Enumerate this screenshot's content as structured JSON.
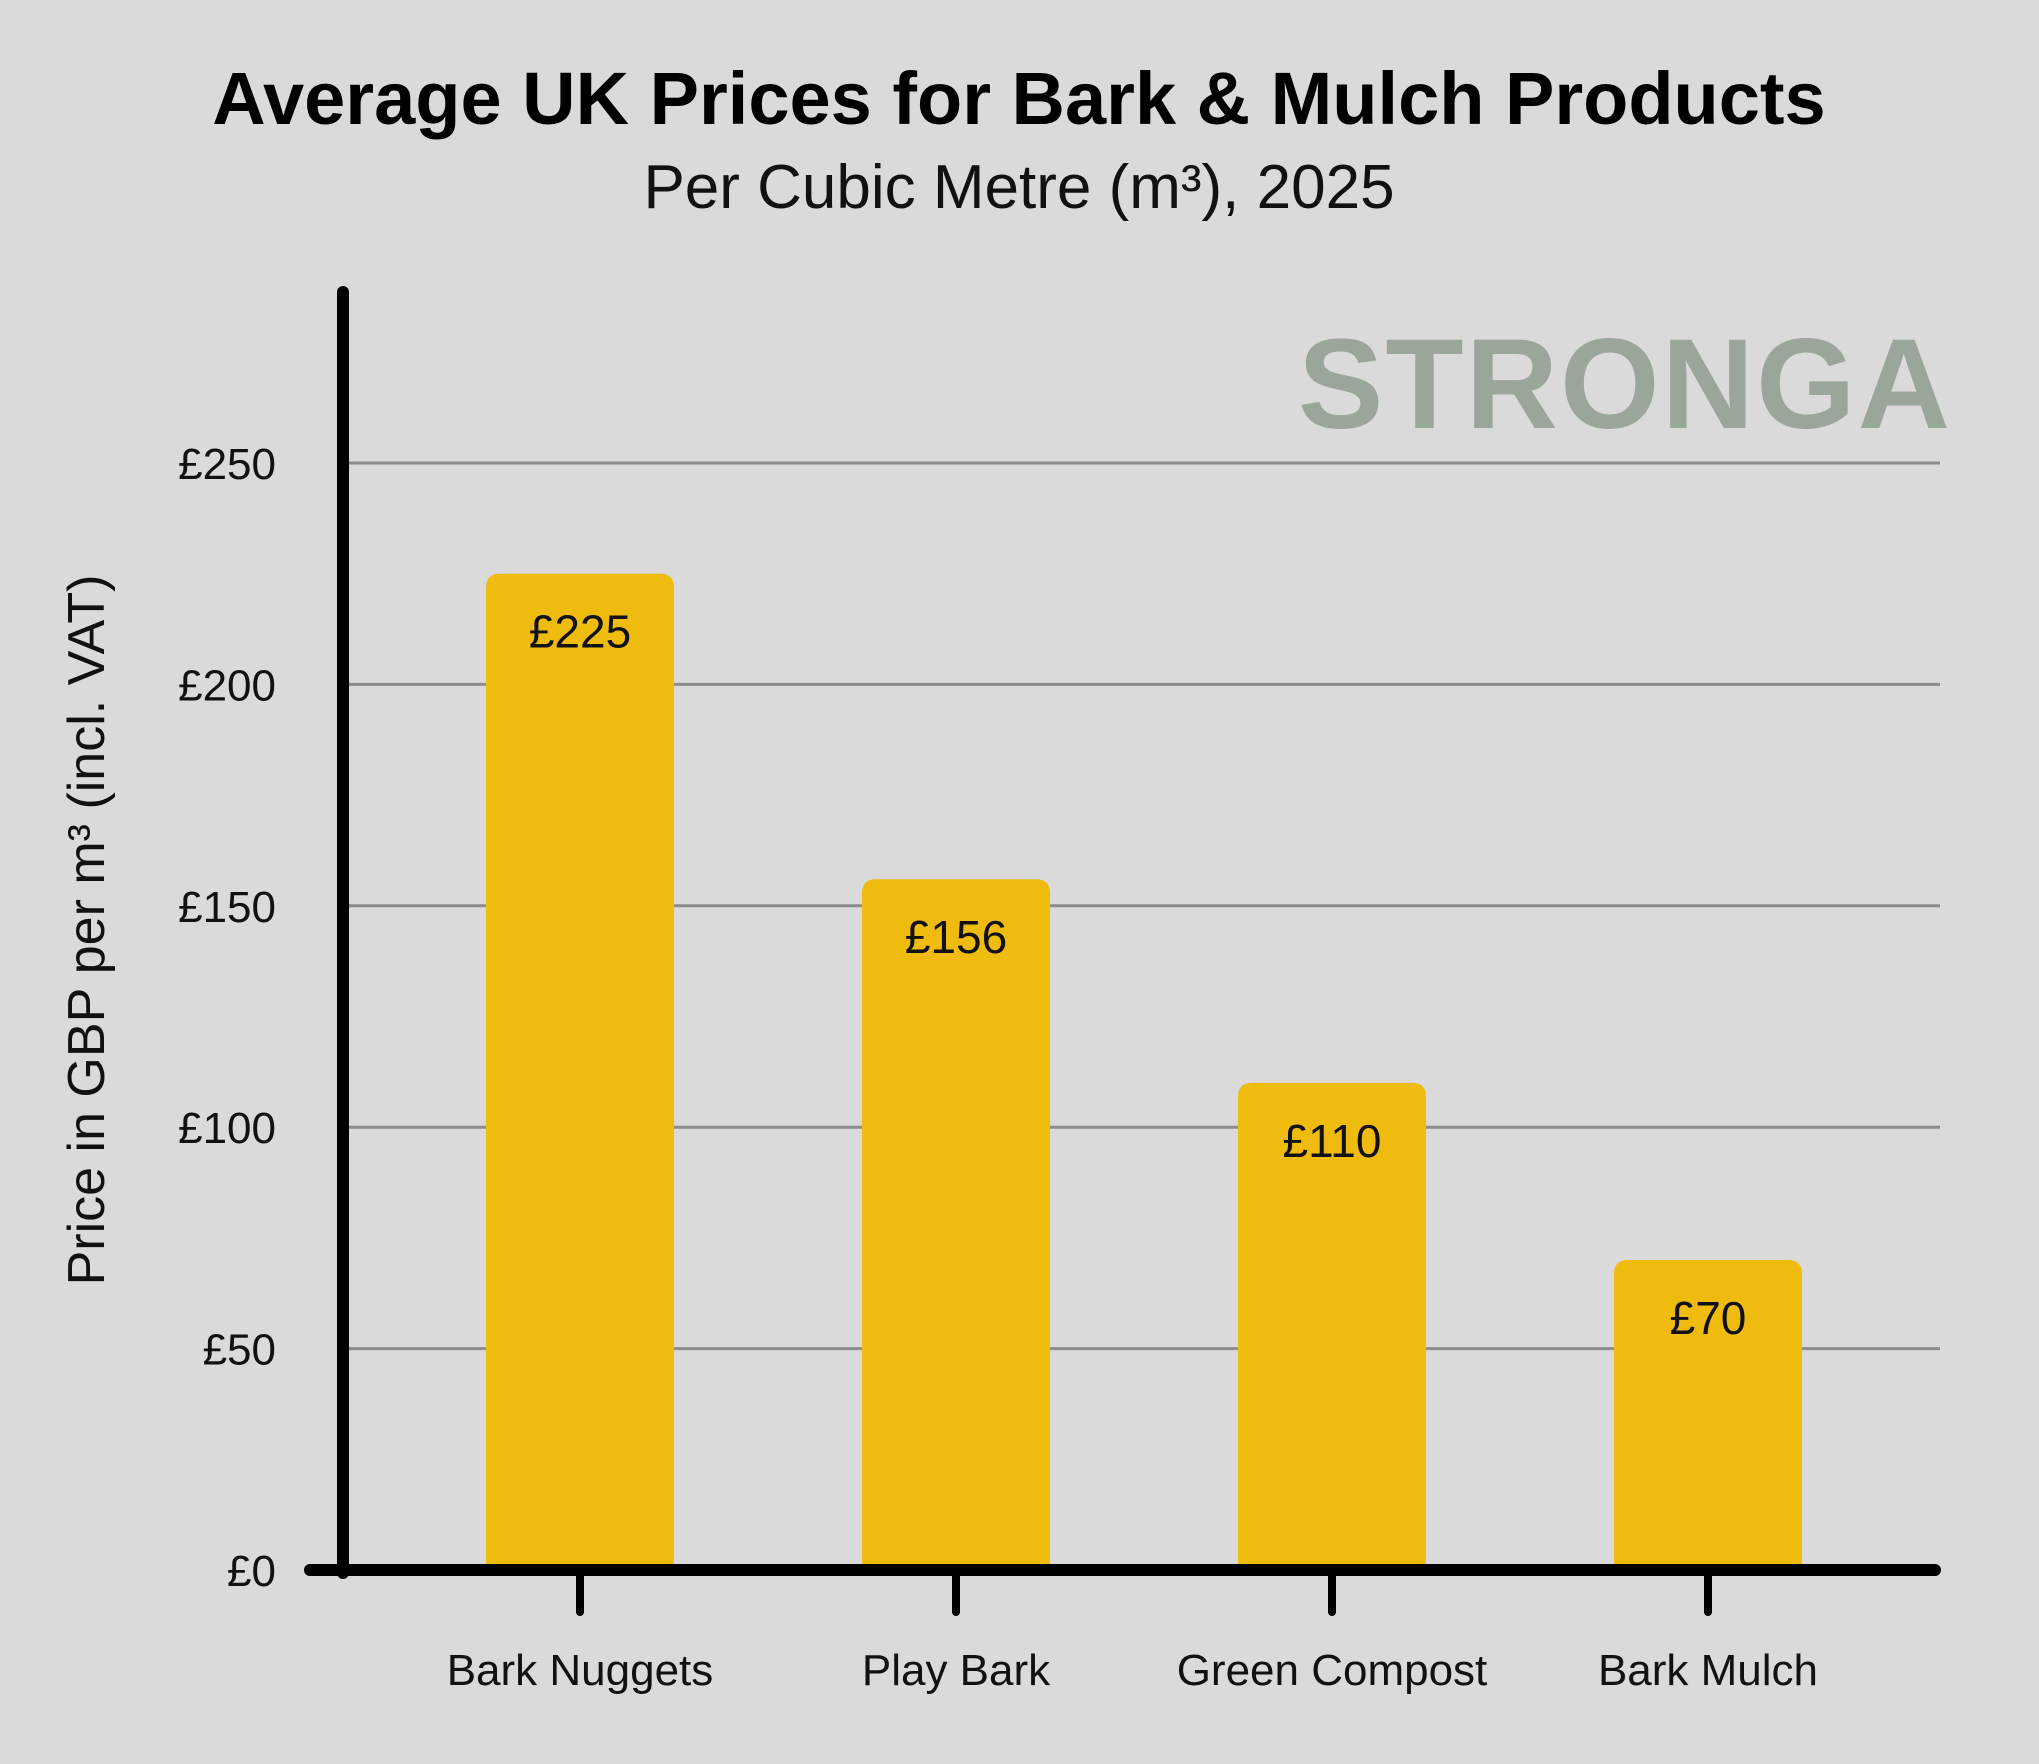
{
  "chart_data": {
    "type": "bar",
    "title": "Average UK Prices for Bark & Mulch Products",
    "subtitle": "Per Cubic Metre (m³), 2025",
    "xlabel": "",
    "ylabel": "Price in GBP per m³ (incl. VAT)",
    "categories": [
      "Bark Nuggets",
      "Play Bark",
      "Green Compost",
      "Bark Mulch"
    ],
    "values": [
      225,
      156,
      110,
      70
    ],
    "value_labels": [
      "£225",
      "£156",
      "£110",
      "£70"
    ],
    "ylim": [
      0,
      280
    ],
    "yticks": [
      0,
      50,
      100,
      150,
      200,
      250
    ],
    "ytick_labels": [
      "£0",
      "£50",
      "£100",
      "£150",
      "£200",
      "£250"
    ],
    "grid": true,
    "legend": "none",
    "watermark": "STRONGA",
    "colors": {
      "bar": "#f0bb0f",
      "background": "#dadada",
      "grid": "#8c8c8c",
      "axis": "#000000",
      "watermark": "#9ba69a"
    }
  }
}
